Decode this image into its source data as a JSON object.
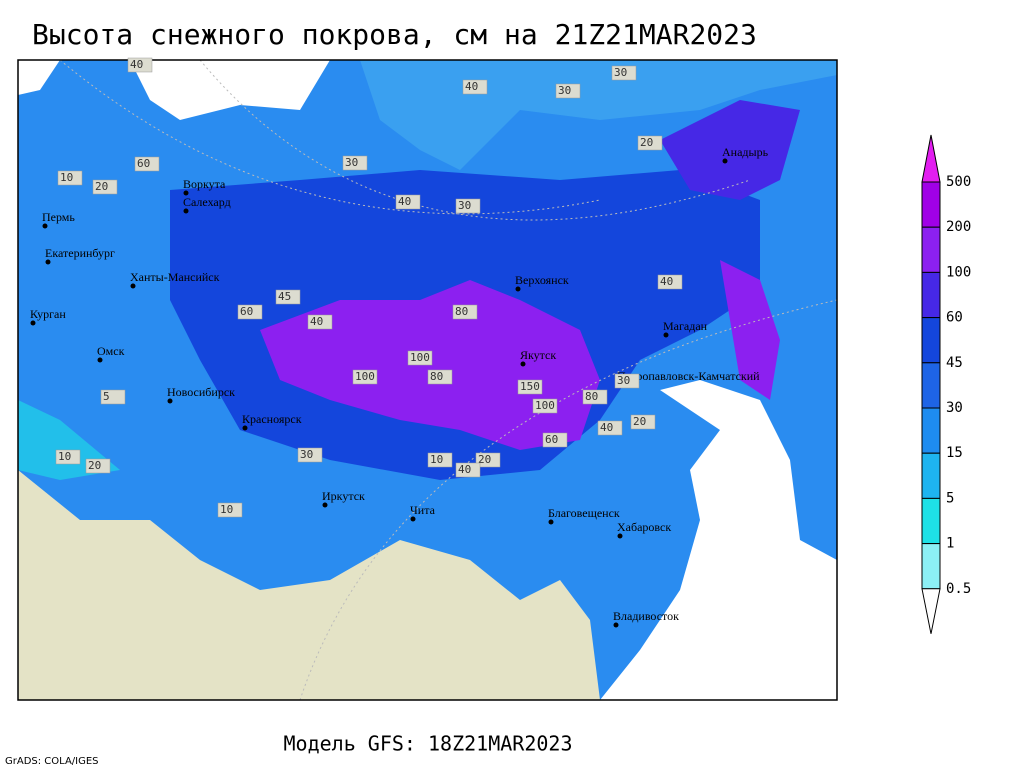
{
  "title": "Высота снежного покрова, см на 21Z21MAR2023",
  "footer": "Модель GFS: 18Z21MAR2023",
  "credit": "GrADS: COLA/IGES",
  "cities": [
    "Воркута",
    "Салехард",
    "Пермь",
    "Екатеринбург",
    "Ханты-Мансийск",
    "Курган",
    "Омск",
    "Новосибирск",
    "Красноярск",
    "Иркутск",
    "Чита",
    "Верхоянск",
    "Якутск",
    "Магадан",
    "Анадырь",
    "Петропавловск-Камчатский",
    "Благовещенск",
    "Хабаровск",
    "Владивосток"
  ],
  "contour_labels": [
    40,
    30,
    40,
    30,
    30,
    60,
    30,
    40,
    40,
    80,
    100,
    100,
    80,
    150,
    100,
    80,
    60,
    40,
    20,
    30,
    40,
    20,
    10,
    20,
    10,
    10,
    20,
    40,
    60,
    45,
    20,
    5,
    10,
    30
  ],
  "legend": {
    "levels": [
      500,
      200,
      100,
      60,
      45,
      30,
      15,
      5,
      1,
      0.5
    ],
    "colors": [
      "#e21ef0",
      "#a000e6",
      "#8c20f0",
      "#4628e6",
      "#1446dc",
      "#1e64e6",
      "#1e8cf0",
      "#1eb4f0",
      "#1ee1e6",
      "#8cf0f5",
      "#ffffff"
    ]
  }
}
